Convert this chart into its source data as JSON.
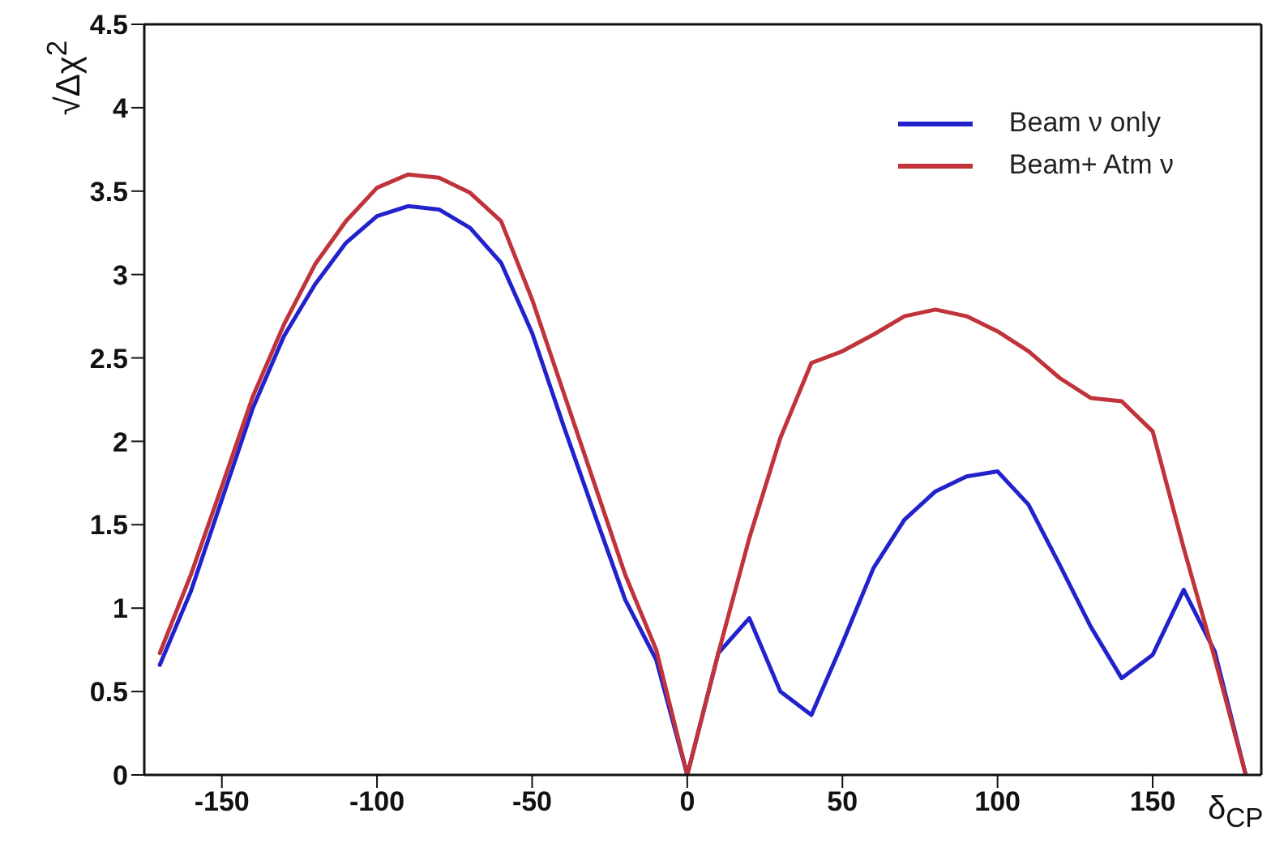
{
  "chart_data": {
    "type": "line",
    "xlabel": "δ$_{CP}$",
    "ylabel": "√Δχ$^{2}$",
    "x": [
      -170,
      -160,
      -150,
      -140,
      -130,
      -120,
      -110,
      -100,
      -90,
      -80,
      -70,
      -60,
      -50,
      -40,
      -30,
      -20,
      -10,
      0,
      10,
      20,
      30,
      40,
      50,
      60,
      70,
      80,
      90,
      100,
      110,
      120,
      130,
      140,
      150,
      160,
      170,
      180
    ],
    "series": [
      {
        "name": "Beam  ν only",
        "color": "#2222cc",
        "values": [
          0.66,
          1.1,
          1.65,
          2.2,
          2.63,
          2.94,
          3.19,
          3.35,
          3.41,
          3.39,
          3.28,
          3.07,
          2.65,
          2.1,
          1.57,
          1.05,
          0.69,
          0,
          0.73,
          0.94,
          0.5,
          0.36,
          0.79,
          1.24,
          1.53,
          1.7,
          1.79,
          1.82,
          1.62,
          1.26,
          0.89,
          0.58,
          0.72,
          1.11,
          0.74,
          0
        ]
      },
      {
        "name": "Beam+ Atm  ν",
        "color": "#c0333a",
        "values": [
          0.73,
          1.2,
          1.73,
          2.27,
          2.7,
          3.06,
          3.32,
          3.52,
          3.6,
          3.58,
          3.49,
          3.32,
          2.85,
          2.3,
          1.75,
          1.2,
          0.75,
          0,
          0.73,
          1.42,
          2.02,
          2.47,
          2.54,
          2.64,
          2.75,
          2.79,
          2.75,
          2.66,
          2.54,
          2.38,
          2.26,
          2.24,
          2.06,
          1.36,
          0.7,
          0
        ]
      }
    ],
    "xlim": [
      -175,
      185
    ],
    "xticks": [
      -150,
      -100,
      -50,
      0,
      50,
      100,
      150
    ],
    "ylim": [
      0,
      4.5
    ],
    "yticks": [
      0,
      0.5,
      1,
      1.5,
      2,
      2.5,
      3,
      3.5,
      4,
      4.5
    ],
    "grid": false,
    "legend": "top right",
    "marker": "none",
    "line_style": "solid"
  }
}
